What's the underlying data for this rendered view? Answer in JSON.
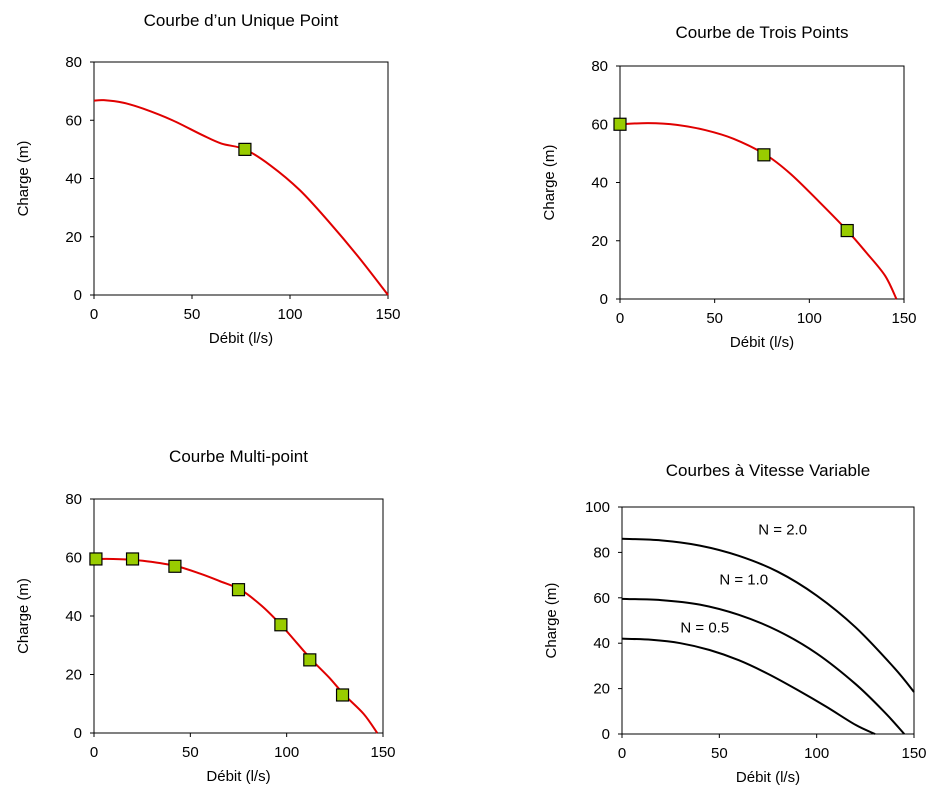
{
  "chart_data": [
    {
      "type": "line",
      "title": "Courbe d’un Unique Point",
      "xlabel": "Débit (l/s)",
      "ylabel": "Charge (m)",
      "xlim": [
        0,
        150
      ],
      "ylim": [
        0,
        80
      ],
      "xticks": [
        0,
        50,
        100,
        150
      ],
      "yticks": [
        0,
        20,
        40,
        60,
        80
      ],
      "grid": false,
      "curve_color": "#e00000",
      "marker_color": "#99cc00",
      "curves": [
        {
          "points": [
            [
              0,
              66.7
            ],
            [
              5,
              66.9
            ],
            [
              15,
              66.0
            ],
            [
              25,
              64.0
            ],
            [
              40,
              60.0
            ],
            [
              55,
              55.0
            ],
            [
              65,
              52.0
            ],
            [
              77,
              50.0
            ],
            [
              90,
              44.5
            ],
            [
              105,
              36.0
            ],
            [
              120,
              25.0
            ],
            [
              135,
              13.0
            ],
            [
              150,
              0
            ]
          ]
        }
      ],
      "markers": [
        [
          77,
          50
        ]
      ]
    },
    {
      "type": "line",
      "title": "Courbe de Trois Points",
      "xlabel": "Débit (l/s)",
      "ylabel": "Charge (m)",
      "xlim": [
        0,
        150
      ],
      "ylim": [
        0,
        80
      ],
      "xticks": [
        0,
        50,
        100,
        150
      ],
      "yticks": [
        0,
        20,
        40,
        60,
        80
      ],
      "grid": false,
      "curve_color": "#e00000",
      "marker_color": "#99cc00",
      "curves": [
        {
          "points": [
            [
              0,
              60.0
            ],
            [
              15,
              60.4
            ],
            [
              30,
              59.8
            ],
            [
              45,
              58.0
            ],
            [
              60,
              55.0
            ],
            [
              77,
              49.5
            ],
            [
              90,
              43.0
            ],
            [
              105,
              33.5
            ],
            [
              120,
              23.5
            ],
            [
              130,
              16.0
            ],
            [
              140,
              8.0
            ],
            [
              146,
              0
            ]
          ]
        }
      ],
      "markers": [
        [
          0,
          60
        ],
        [
          76,
          49.5
        ],
        [
          120,
          23.5
        ]
      ]
    },
    {
      "type": "line",
      "title": "Courbe Multi-point",
      "xlabel": "Débit (l/s)",
      "ylabel": "Charge (m)",
      "xlim": [
        0,
        150
      ],
      "ylim": [
        0,
        80
      ],
      "xticks": [
        0,
        50,
        100,
        150
      ],
      "yticks": [
        0,
        20,
        40,
        60,
        80
      ],
      "grid": false,
      "curve_color": "#e00000",
      "marker_color": "#99cc00",
      "curves": [
        {
          "points": [
            [
              0,
              59.5
            ],
            [
              10,
              59.5
            ],
            [
              20,
              59.2
            ],
            [
              30,
              58.5
            ],
            [
              43,
              57.0
            ],
            [
              55,
              54.5
            ],
            [
              65,
              52.0
            ],
            [
              76,
              49.0
            ],
            [
              87,
              43.5
            ],
            [
              97,
              37.0
            ],
            [
              105,
              31.0
            ],
            [
              113,
              25.0
            ],
            [
              122,
              19.0
            ],
            [
              130,
              13.0
            ],
            [
              140,
              6.5
            ],
            [
              147,
              0
            ]
          ]
        }
      ],
      "markers": [
        [
          1,
          59.5
        ],
        [
          20,
          59.5
        ],
        [
          42,
          57
        ],
        [
          75,
          49
        ],
        [
          97,
          37
        ],
        [
          112,
          25
        ],
        [
          129,
          13
        ]
      ]
    },
    {
      "type": "line",
      "title": "Courbes à Vitesse Variable",
      "xlabel": "Débit (l/s)",
      "ylabel": "Charge (m)",
      "xlim": [
        0,
        150
      ],
      "ylim": [
        0,
        100
      ],
      "xticks": [
        0,
        50,
        100,
        150
      ],
      "yticks": [
        0,
        20,
        40,
        60,
        80,
        100
      ],
      "grid": false,
      "curve_color": "#000000",
      "curves": [
        {
          "label": "N = 2.0",
          "label_at": [
            70,
            90
          ],
          "points": [
            [
              0,
              86
            ],
            [
              20,
              85.3
            ],
            [
              40,
              83.0
            ],
            [
              60,
              78.5
            ],
            [
              80,
              71.5
            ],
            [
              100,
              61.0
            ],
            [
              120,
              47.0
            ],
            [
              140,
              29.0
            ],
            [
              150,
              18.5
            ]
          ]
        },
        {
          "label": "N = 1.0",
          "label_at": [
            50,
            68
          ],
          "points": [
            [
              0,
              59.5
            ],
            [
              20,
              59.0
            ],
            [
              40,
              57.0
            ],
            [
              60,
              52.5
            ],
            [
              80,
              45.5
            ],
            [
              100,
              35.5
            ],
            [
              120,
              22.0
            ],
            [
              135,
              9.5
            ],
            [
              145,
              0
            ]
          ]
        },
        {
          "label": "N = 0.5",
          "label_at": [
            30,
            47
          ],
          "points": [
            [
              0,
              42
            ],
            [
              15,
              41.5
            ],
            [
              30,
              40.0
            ],
            [
              45,
              37.0
            ],
            [
              60,
              32.5
            ],
            [
              75,
              26.5
            ],
            [
              90,
              19.5
            ],
            [
              105,
              12.0
            ],
            [
              120,
              4.0
            ],
            [
              130,
              0
            ]
          ]
        }
      ],
      "markers": []
    }
  ]
}
